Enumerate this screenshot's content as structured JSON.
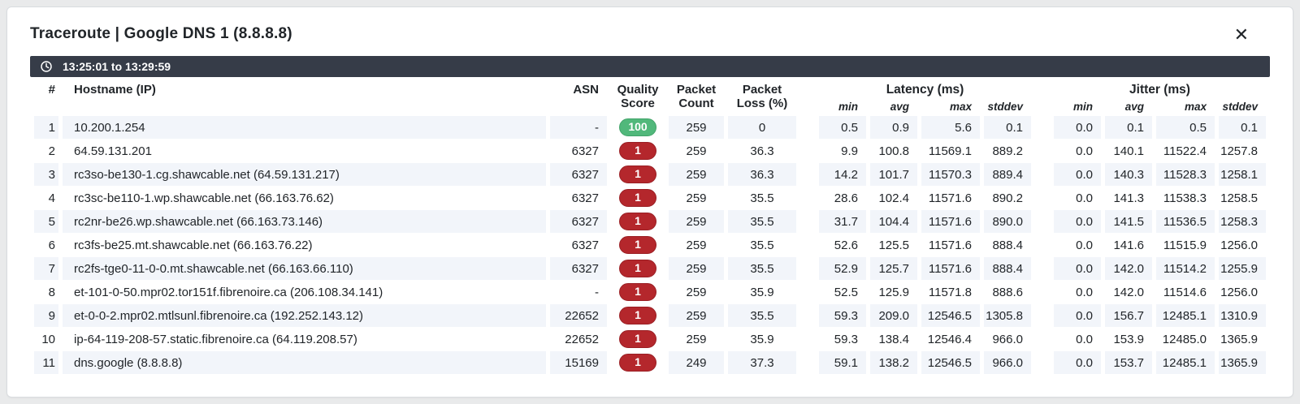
{
  "panel": {
    "title": "Traceroute | Google DNS 1 (8.8.8.8)",
    "time_range": "13:25:01 to 13:29:59"
  },
  "icons": {
    "clock": "clock-outline",
    "close": "✕"
  },
  "colors": {
    "time_bar_bg": "#363c48",
    "row_stripe": "#f2f5fa",
    "score_green": "#51b87b",
    "score_red": "#b4272c"
  },
  "table": {
    "headers": {
      "hop": "#",
      "hostname": "Hostname (IP)",
      "asn": "ASN",
      "quality_l1": "Quality",
      "quality_l2": "Score",
      "packet_count_l1": "Packet",
      "packet_count_l2": "Count",
      "packet_loss_l1": "Packet",
      "packet_loss_l2": "Loss (%)",
      "latency_group": "Latency (ms)",
      "jitter_group": "Jitter (ms)",
      "sub": {
        "min": "min",
        "avg": "avg",
        "max": "max",
        "stddev": "stddev"
      }
    },
    "rows": [
      {
        "hop": "1",
        "host": "10.200.1.254",
        "asn": "-",
        "score": "100",
        "score_color": "green",
        "packets": "259",
        "loss": "0",
        "lat_min": "0.5",
        "lat_avg": "0.9",
        "lat_max": "5.6",
        "lat_std": "0.1",
        "jit_min": "0.0",
        "jit_avg": "0.1",
        "jit_max": "0.5",
        "jit_std": "0.1"
      },
      {
        "hop": "2",
        "host": "64.59.131.201",
        "asn": "6327",
        "score": "1",
        "score_color": "red",
        "packets": "259",
        "loss": "36.3",
        "lat_min": "9.9",
        "lat_avg": "100.8",
        "lat_max": "11569.1",
        "lat_std": "889.2",
        "jit_min": "0.0",
        "jit_avg": "140.1",
        "jit_max": "11522.4",
        "jit_std": "1257.8"
      },
      {
        "hop": "3",
        "host": "rc3so-be130-1.cg.shawcable.net (64.59.131.217)",
        "asn": "6327",
        "score": "1",
        "score_color": "red",
        "packets": "259",
        "loss": "36.3",
        "lat_min": "14.2",
        "lat_avg": "101.7",
        "lat_max": "11570.3",
        "lat_std": "889.4",
        "jit_min": "0.0",
        "jit_avg": "140.3",
        "jit_max": "11528.3",
        "jit_std": "1258.1"
      },
      {
        "hop": "4",
        "host": "rc3sc-be110-1.wp.shawcable.net (66.163.76.62)",
        "asn": "6327",
        "score": "1",
        "score_color": "red",
        "packets": "259",
        "loss": "35.5",
        "lat_min": "28.6",
        "lat_avg": "102.4",
        "lat_max": "11571.6",
        "lat_std": "890.2",
        "jit_min": "0.0",
        "jit_avg": "141.3",
        "jit_max": "11538.3",
        "jit_std": "1258.5"
      },
      {
        "hop": "5",
        "host": "rc2nr-be26.wp.shawcable.net (66.163.73.146)",
        "asn": "6327",
        "score": "1",
        "score_color": "red",
        "packets": "259",
        "loss": "35.5",
        "lat_min": "31.7",
        "lat_avg": "104.4",
        "lat_max": "11571.6",
        "lat_std": "890.0",
        "jit_min": "0.0",
        "jit_avg": "141.5",
        "jit_max": "11536.5",
        "jit_std": "1258.3"
      },
      {
        "hop": "6",
        "host": "rc3fs-be25.mt.shawcable.net (66.163.76.22)",
        "asn": "6327",
        "score": "1",
        "score_color": "red",
        "packets": "259",
        "loss": "35.5",
        "lat_min": "52.6",
        "lat_avg": "125.5",
        "lat_max": "11571.6",
        "lat_std": "888.4",
        "jit_min": "0.0",
        "jit_avg": "141.6",
        "jit_max": "11515.9",
        "jit_std": "1256.0"
      },
      {
        "hop": "7",
        "host": "rc2fs-tge0-11-0-0.mt.shawcable.net (66.163.66.110)",
        "asn": "6327",
        "score": "1",
        "score_color": "red",
        "packets": "259",
        "loss": "35.5",
        "lat_min": "52.9",
        "lat_avg": "125.7",
        "lat_max": "11571.6",
        "lat_std": "888.4",
        "jit_min": "0.0",
        "jit_avg": "142.0",
        "jit_max": "11514.2",
        "jit_std": "1255.9"
      },
      {
        "hop": "8",
        "host": "et-101-0-50.mpr02.tor151f.fibrenoire.ca (206.108.34.141)",
        "asn": "-",
        "score": "1",
        "score_color": "red",
        "packets": "259",
        "loss": "35.9",
        "lat_min": "52.5",
        "lat_avg": "125.9",
        "lat_max": "11571.8",
        "lat_std": "888.6",
        "jit_min": "0.0",
        "jit_avg": "142.0",
        "jit_max": "11514.6",
        "jit_std": "1256.0"
      },
      {
        "hop": "9",
        "host": "et-0-0-2.mpr02.mtlsunl.fibrenoire.ca (192.252.143.12)",
        "asn": "22652",
        "score": "1",
        "score_color": "red",
        "packets": "259",
        "loss": "35.5",
        "lat_min": "59.3",
        "lat_avg": "209.0",
        "lat_max": "12546.5",
        "lat_std": "1305.8",
        "jit_min": "0.0",
        "jit_avg": "156.7",
        "jit_max": "12485.1",
        "jit_std": "1310.9"
      },
      {
        "hop": "10",
        "host": "ip-64-119-208-57.static.fibrenoire.ca (64.119.208.57)",
        "asn": "22652",
        "score": "1",
        "score_color": "red",
        "packets": "259",
        "loss": "35.9",
        "lat_min": "59.3",
        "lat_avg": "138.4",
        "lat_max": "12546.4",
        "lat_std": "966.0",
        "jit_min": "0.0",
        "jit_avg": "153.9",
        "jit_max": "12485.0",
        "jit_std": "1365.9"
      },
      {
        "hop": "11",
        "host": "dns.google (8.8.8.8)",
        "asn": "15169",
        "score": "1",
        "score_color": "red",
        "packets": "249",
        "loss": "37.3",
        "lat_min": "59.1",
        "lat_avg": "138.2",
        "lat_max": "12546.5",
        "lat_std": "966.0",
        "jit_min": "0.0",
        "jit_avg": "153.7",
        "jit_max": "12485.1",
        "jit_std": "1365.9"
      }
    ]
  }
}
